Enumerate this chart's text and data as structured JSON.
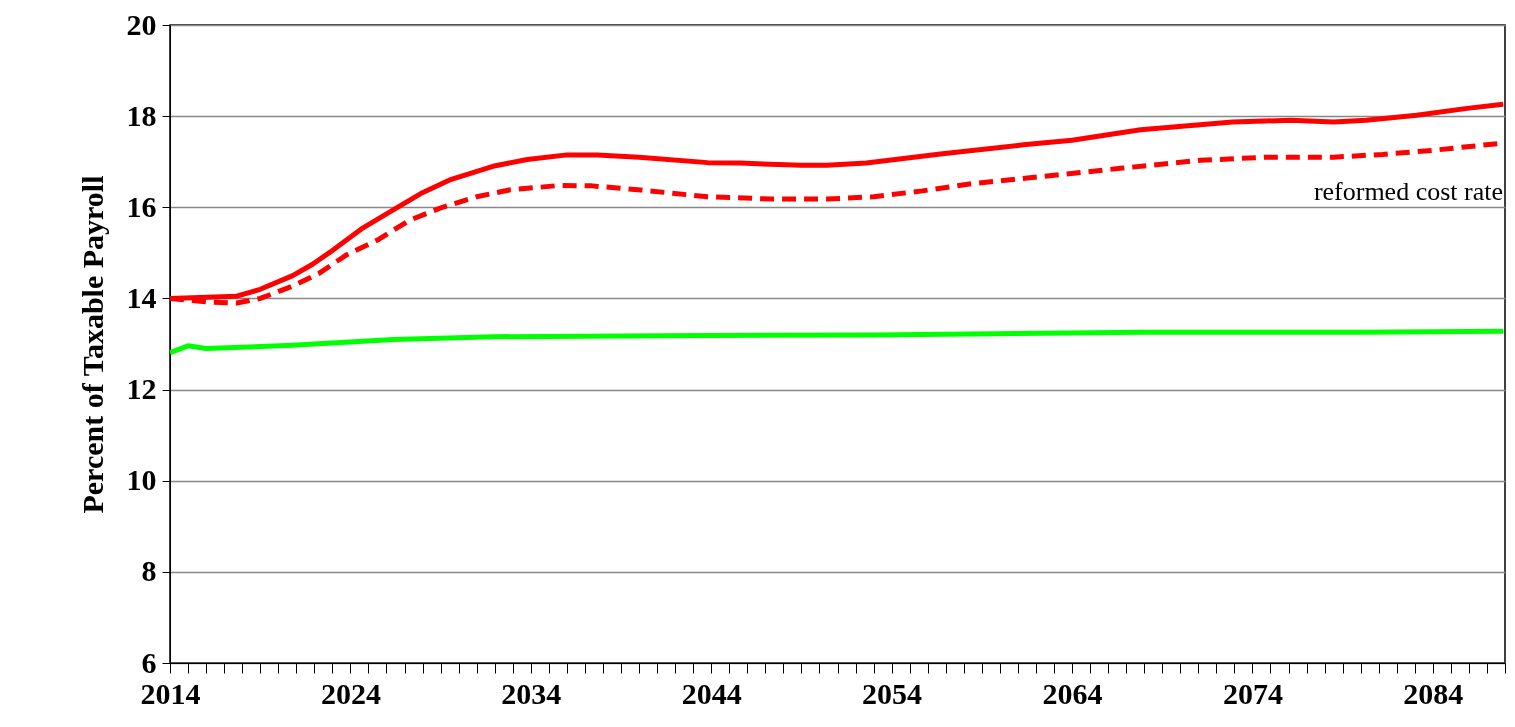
{
  "chart_data": {
    "type": "line",
    "ylabel": "Percent of Taxable Payroll",
    "ylim": [
      6,
      20
    ],
    "yticks": [
      6,
      8,
      10,
      12,
      14,
      16,
      18,
      20
    ],
    "xlim": [
      2014,
      2088
    ],
    "xticks": [
      2014,
      {
        "value": 2015,
        "label": null
      },
      {
        "value": 2016,
        "label": null
      },
      {
        "value": 2017,
        "label": null
      },
      {
        "value": 2018,
        "label": null
      },
      {
        "value": 2019,
        "label": null
      },
      {
        "value": 2020,
        "label": null
      },
      {
        "value": 2021,
        "label": null
      },
      {
        "value": 2022,
        "label": null
      },
      {
        "value": 2023,
        "label": null
      },
      2024,
      {
        "value": 2025,
        "label": null
      },
      {
        "value": 2026,
        "label": null
      },
      {
        "value": 2027,
        "label": null
      },
      {
        "value": 2028,
        "label": null
      },
      {
        "value": 2029,
        "label": null
      },
      {
        "value": 2030,
        "label": null
      },
      {
        "value": 2031,
        "label": null
      },
      {
        "value": 2032,
        "label": null
      },
      {
        "value": 2033,
        "label": null
      },
      2034,
      {
        "value": 2035,
        "label": null
      },
      {
        "value": 2036,
        "label": null
      },
      {
        "value": 2037,
        "label": null
      },
      {
        "value": 2038,
        "label": null
      },
      {
        "value": 2039,
        "label": null
      },
      {
        "value": 2040,
        "label": null
      },
      {
        "value": 2041,
        "label": null
      },
      {
        "value": 2042,
        "label": null
      },
      {
        "value": 2043,
        "label": null
      },
      2044,
      {
        "value": 2045,
        "label": null
      },
      {
        "value": 2046,
        "label": null
      },
      {
        "value": 2047,
        "label": null
      },
      {
        "value": 2048,
        "label": null
      },
      {
        "value": 2049,
        "label": null
      },
      {
        "value": 2050,
        "label": null
      },
      {
        "value": 2051,
        "label": null
      },
      {
        "value": 2052,
        "label": null
      },
      {
        "value": 2053,
        "label": null
      },
      2054,
      {
        "value": 2055,
        "label": null
      },
      {
        "value": 2056,
        "label": null
      },
      {
        "value": 2057,
        "label": null
      },
      {
        "value": 2058,
        "label": null
      },
      {
        "value": 2059,
        "label": null
      },
      {
        "value": 2060,
        "label": null
      },
      {
        "value": 2061,
        "label": null
      },
      {
        "value": 2062,
        "label": null
      },
      {
        "value": 2063,
        "label": null
      },
      2064,
      {
        "value": 2065,
        "label": null
      },
      {
        "value": 2066,
        "label": null
      },
      {
        "value": 2067,
        "label": null
      },
      {
        "value": 2068,
        "label": null
      },
      {
        "value": 2069,
        "label": null
      },
      {
        "value": 2070,
        "label": null
      },
      {
        "value": 2071,
        "label": null
      },
      {
        "value": 2072,
        "label": null
      },
      {
        "value": 2073,
        "label": null
      },
      2074,
      {
        "value": 2075,
        "label": null
      },
      {
        "value": 2076,
        "label": null
      },
      {
        "value": 2077,
        "label": null
      },
      {
        "value": 2078,
        "label": null
      },
      {
        "value": 2079,
        "label": null
      },
      {
        "value": 2080,
        "label": null
      },
      {
        "value": 2081,
        "label": null
      },
      {
        "value": 2082,
        "label": null
      },
      {
        "value": 2083,
        "label": null
      },
      2084,
      {
        "value": 2085,
        "label": null
      },
      {
        "value": 2086,
        "label": null
      },
      {
        "value": 2087,
        "label": null
      },
      {
        "value": 2088,
        "label": null
      }
    ],
    "grid": "y",
    "marker": "none",
    "series": [
      {
        "color": "#ff0000",
        "line_style": "solid",
        "x": [
          2014,
          2017.7,
          2019,
          2020.8,
          2021.9,
          2023,
          2024.7,
          2026.4,
          2027.9,
          2029.5,
          2031.9,
          2033.8,
          2036,
          2037.7,
          2040,
          2043.8,
          2045.6,
          2049,
          2050.4,
          2052.6,
          2056.7,
          2061.3,
          2064,
          2067.8,
          2072.9,
          2076.1,
          2078.5,
          2080.3,
          2083.1,
          2085.9,
          2087.9
        ],
        "values": [
          14.0,
          14.05,
          14.2,
          14.5,
          14.75,
          15.05,
          15.55,
          15.95,
          16.3,
          16.6,
          16.9,
          17.05,
          17.15,
          17.15,
          17.1,
          16.98,
          16.97,
          16.92,
          16.92,
          16.97,
          17.17,
          17.37,
          17.47,
          17.7,
          17.87,
          17.91,
          17.87,
          17.91,
          18.02,
          18.17,
          18.26
        ]
      },
      {
        "color": "#ff0000",
        "line_style": "dashed",
        "x": [
          2014,
          2016.2,
          2017.7,
          2019,
          2020.8,
          2022.3,
          2023.8,
          2025.5,
          2027.3,
          2029.1,
          2031,
          2032.8,
          2035.6,
          2037.4,
          2040.1,
          2043.8,
          2047.4,
          2050.4,
          2053,
          2055.7,
          2058.5,
          2062.2,
          2066.8,
          2071.1,
          2074.8,
          2078.5,
          2081.2,
          2084,
          2087.9
        ],
        "values": [
          14.0,
          13.92,
          13.9,
          14.0,
          14.27,
          14.56,
          14.96,
          15.28,
          15.72,
          16.0,
          16.23,
          16.38,
          16.48,
          16.47,
          16.38,
          16.23,
          16.18,
          16.18,
          16.23,
          16.36,
          16.52,
          16.67,
          16.86,
          17.03,
          17.1,
          17.1,
          17.16,
          17.25,
          17.41
        ]
      },
      {
        "color": "#00ff00",
        "line_style": "solid",
        "x": [
          2014,
          2015,
          2016,
          2020.8,
          2026.4,
          2031.9,
          2041.2,
          2053,
          2067.8,
          2080,
          2087.9
        ],
        "values": [
          12.81,
          12.96,
          12.9,
          12.97,
          13.1,
          13.16,
          13.18,
          13.2,
          13.26,
          13.26,
          13.28
        ]
      }
    ],
    "annotations": [
      "reformed cost rate"
    ]
  }
}
